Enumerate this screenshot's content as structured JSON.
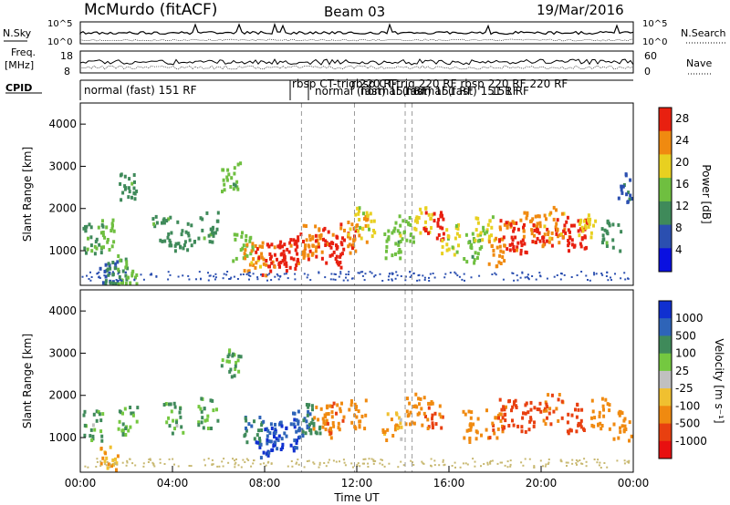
{
  "header": {
    "station": "McMurdo (fitACF)",
    "beam": "Beam 03",
    "date": "19/Mar/2016"
  },
  "top_panels": {
    "nsky_label": "N.Sky",
    "nsky_ticks": [
      "10^5",
      "10^0"
    ],
    "nsearch_label": "N.Search",
    "nsearch_ticks": [
      "10^5",
      "10^0"
    ],
    "freq_label_1": "Freq.",
    "freq_label_2": "[MHz]",
    "freq_ticks": [
      "18",
      "8"
    ],
    "nave_label": "Nave",
    "nave_ticks": [
      "60",
      "0"
    ],
    "cpid_label": "CPID",
    "cpid_entries": [
      {
        "text": "normal (fast) 151 RF",
        "t_start": 0.0
      },
      {
        "text": "rbsp CT-trig 220 RF",
        "t_start": 9.6
      },
      {
        "text": "normal (fast) 151 RF",
        "t_start": 10.1
      },
      {
        "text": "rbsp CT-trig 220 RF",
        "t_start": 14.1
      },
      {
        "text": "normal (fast) 151 RF",
        "t_start": 14.3
      },
      {
        "text": "normal (fast) 151 RF",
        "t_start": 15.5
      }
    ],
    "cpid_overlap_text": "rbsp CT-trig 220 RF rbsp 220 RF 220 RF",
    "cpid_tail_text": "151 RF"
  },
  "axes": {
    "x_label": "Time UT",
    "x_ticks": [
      "00:00",
      "04:00",
      "08:00",
      "12:00",
      "16:00",
      "20:00",
      "00:00"
    ],
    "y_label": "Slant Range [km]",
    "y_ticks": [
      "1000",
      "2000",
      "3000",
      "4000"
    ]
  },
  "colorbars": {
    "power": {
      "label": "Power [dB]",
      "ticks": [
        "4",
        "8",
        "12",
        "16",
        "20",
        "24",
        "28"
      ],
      "colors": [
        "#0a10e0",
        "#2b4fb0",
        "#3f8a5a",
        "#6fbf40",
        "#e8d020",
        "#f08a10",
        "#e82010"
      ]
    },
    "velocity": {
      "label": "Velocity [m s⁻¹]",
      "ticks": [
        "1000",
        "500",
        "100",
        "25",
        "-25",
        "-100",
        "-500",
        "-1000"
      ],
      "colors": [
        "#1030d0",
        "#2e64b8",
        "#3f8a5a",
        "#74c840",
        "#c0c0c0",
        "#f0c030",
        "#f08a10",
        "#e84010",
        "#e81010"
      ]
    }
  },
  "chart_data": [
    {
      "type": "heatmap",
      "title": "Power [dB]",
      "xlabel": "Time UT",
      "ylabel": "Slant Range [km]",
      "xlim": [
        0,
        24
      ],
      "ylim": [
        180,
        4500
      ],
      "clim": [
        0,
        30
      ],
      "cells": [
        [
          1.2,
          450,
          8
        ],
        [
          1.6,
          550,
          12
        ],
        [
          2.0,
          450,
          14
        ],
        [
          0.5,
          1300,
          12
        ],
        [
          1.0,
          1400,
          14
        ],
        [
          3.5,
          1500,
          12
        ],
        [
          4.5,
          1400,
          10
        ],
        [
          2.0,
          2500,
          12
        ],
        [
          5.5,
          1600,
          12
        ],
        [
          6.5,
          2800,
          14
        ],
        [
          7.0,
          1100,
          16
        ],
        [
          7.5,
          900,
          22
        ],
        [
          8.0,
          800,
          26
        ],
        [
          8.5,
          850,
          28
        ],
        [
          9.0,
          950,
          28
        ],
        [
          9.5,
          1100,
          26
        ],
        [
          10.0,
          1300,
          24
        ],
        [
          10.5,
          1200,
          26
        ],
        [
          11.0,
          1000,
          28
        ],
        [
          11.5,
          1300,
          26
        ],
        [
          12.0,
          1500,
          22
        ],
        [
          12.3,
          1700,
          18
        ],
        [
          13.5,
          1200,
          14
        ],
        [
          14.0,
          1500,
          16
        ],
        [
          14.8,
          1800,
          20
        ],
        [
          15.3,
          1600,
          28
        ],
        [
          16.0,
          1300,
          18
        ],
        [
          17.0,
          1100,
          14
        ],
        [
          17.5,
          1600,
          18
        ],
        [
          18.0,
          1000,
          24
        ],
        [
          18.5,
          1400,
          26
        ],
        [
          19.0,
          1300,
          28
        ],
        [
          19.5,
          1600,
          24
        ],
        [
          20.0,
          1300,
          26
        ],
        [
          20.5,
          1700,
          22
        ],
        [
          21.0,
          1500,
          26
        ],
        [
          21.5,
          1400,
          28
        ],
        [
          22.0,
          1700,
          20
        ],
        [
          23.0,
          1400,
          12
        ],
        [
          23.7,
          2500,
          8
        ]
      ]
    },
    {
      "type": "heatmap",
      "title": "Velocity [m s⁻¹]",
      "xlabel": "Time UT",
      "ylabel": "Slant Range [km]",
      "xlim": [
        0,
        24
      ],
      "ylim": [
        180,
        4500
      ],
      "clim": [
        -1000,
        1000
      ],
      "cells": [
        [
          0.5,
          1300,
          100
        ],
        [
          1.2,
          450,
          -100
        ],
        [
          2.0,
          1400,
          100
        ],
        [
          4.0,
          1500,
          100
        ],
        [
          5.5,
          1600,
          100
        ],
        [
          6.5,
          2800,
          100
        ],
        [
          7.5,
          1200,
          500
        ],
        [
          8.0,
          900,
          1000
        ],
        [
          8.5,
          1000,
          1000
        ],
        [
          9.0,
          1100,
          1000
        ],
        [
          9.5,
          1300,
          800
        ],
        [
          10.0,
          1500,
          300
        ],
        [
          10.5,
          1400,
          -300
        ],
        [
          11.0,
          1500,
          -500
        ],
        [
          12.0,
          1600,
          -400
        ],
        [
          13.5,
          1300,
          -100
        ],
        [
          14.5,
          1700,
          -300
        ],
        [
          15.3,
          1600,
          -500
        ],
        [
          17.0,
          1300,
          -200
        ],
        [
          18.0,
          1400,
          -500
        ],
        [
          18.5,
          1600,
          -600
        ],
        [
          19.5,
          1500,
          -700
        ],
        [
          20.5,
          1700,
          -500
        ],
        [
          21.5,
          1500,
          -600
        ],
        [
          22.5,
          1600,
          -400
        ],
        [
          23.5,
          1300,
          -300
        ]
      ]
    }
  ]
}
